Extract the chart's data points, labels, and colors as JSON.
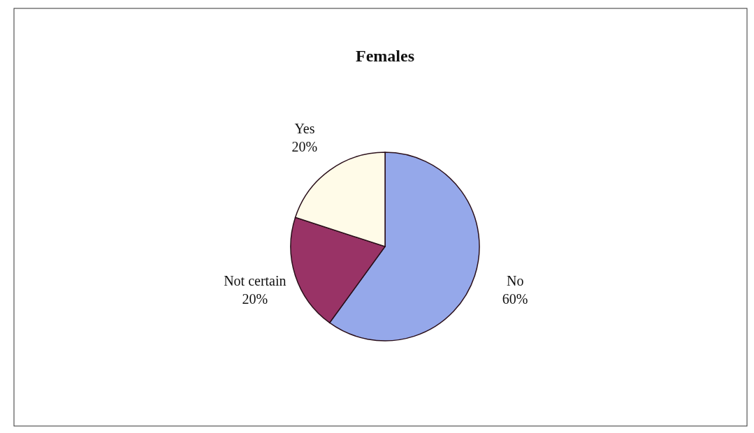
{
  "chart_data": {
    "type": "pie",
    "title": "Females",
    "categories": [
      "No",
      "Not certain",
      "Yes"
    ],
    "values": [
      60,
      20,
      20
    ],
    "colors": [
      "#95a8ea",
      "#993366",
      "#fffbe8"
    ],
    "value_labels": [
      "60%",
      "20%",
      "20%"
    ]
  }
}
